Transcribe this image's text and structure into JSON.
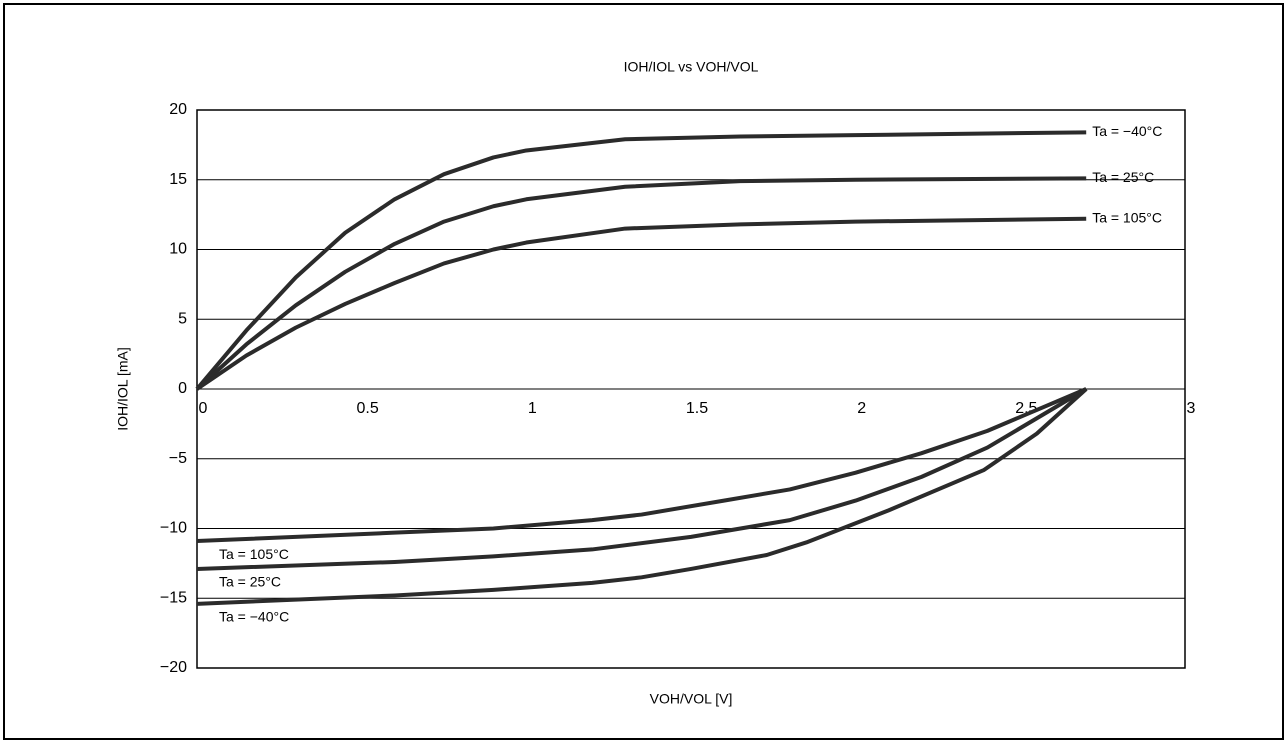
{
  "chart_data": {
    "type": "line",
    "title": "IOH/IOL vs VOH/VOL",
    "x_label": "VOH/VOL [V]",
    "y_label": "IOH/IOL [mA]",
    "xlim": [
      0,
      3
    ],
    "ylim": [
      -20,
      20
    ],
    "xticks": [
      0,
      0.5,
      1,
      1.5,
      2,
      2.5,
      3
    ],
    "yticks": [
      {
        "value": -20,
        "label": "−20"
      },
      {
        "value": -15,
        "label": "−15"
      },
      {
        "value": -10,
        "label": "−10"
      },
      {
        "value": -5,
        "label": "−5"
      },
      0,
      5,
      10,
      15,
      20
    ],
    "grid": true,
    "series": [
      {
        "name": "Ta = −40°C",
        "color": "#2b2b2b",
        "x": [
          0,
          0.15,
          0.3,
          0.45,
          0.6,
          0.75,
          0.9,
          1,
          1.3,
          1.65,
          2,
          2.7
        ],
        "values": [
          0,
          4.2,
          8,
          11.2,
          13.6,
          15.4,
          16.6,
          17.1,
          17.9,
          18.1,
          18.2,
          18.4
        ]
      },
      {
        "name": "Ta = 25°C",
        "color": "#2b2b2b",
        "x": [
          0,
          0.15,
          0.3,
          0.45,
          0.6,
          0.75,
          0.9,
          1,
          1.3,
          1.65,
          2,
          2.7
        ],
        "values": [
          0,
          3.2,
          6,
          8.4,
          10.4,
          12,
          13.1,
          13.6,
          14.5,
          14.9,
          15,
          15.1
        ]
      },
      {
        "name": "Ta = 105°C",
        "color": "#2b2b2b",
        "x": [
          0,
          0.15,
          0.3,
          0.45,
          0.6,
          0.75,
          0.9,
          1,
          1.3,
          1.65,
          2,
          2.7
        ],
        "values": [
          0,
          2.4,
          4.4,
          6.1,
          7.6,
          9,
          10,
          10.5,
          11.5,
          11.8,
          12,
          12.2
        ]
      },
      {
        "name": "Ta = 105°C",
        "color": "#2b2b2b",
        "x": [
          0,
          0.6,
          0.9,
          1.2,
          1.35,
          1.6,
          1.8,
          2,
          2.2,
          2.4,
          2.7
        ],
        "values": [
          -10.9,
          -10.3,
          -10,
          -9.4,
          -9,
          -8,
          -7.2,
          -6,
          -4.6,
          -3,
          0
        ]
      },
      {
        "name": "Ta = 25°C",
        "color": "#2b2b2b",
        "x": [
          0,
          0.6,
          0.9,
          1.2,
          1.5,
          1.8,
          2,
          2.2,
          2.4,
          2.7
        ],
        "values": [
          -12.9,
          -12.4,
          -12,
          -11.5,
          -10.6,
          -9.4,
          -8,
          -6.3,
          -4.2,
          0
        ]
      },
      {
        "name": "Ta = −40°C",
        "color": "#2b2b2b",
        "x": [
          0,
          0.3,
          0.6,
          0.9,
          1.2,
          1.35,
          1.5,
          1.73,
          1.85,
          2.1,
          2.39,
          2.55,
          2.7
        ],
        "values": [
          -15.4,
          -15.1,
          -14.8,
          -14.4,
          -13.9,
          -13.5,
          -12.9,
          -11.9,
          -11,
          -8.7,
          -5.8,
          -3.2,
          0
        ]
      }
    ]
  }
}
